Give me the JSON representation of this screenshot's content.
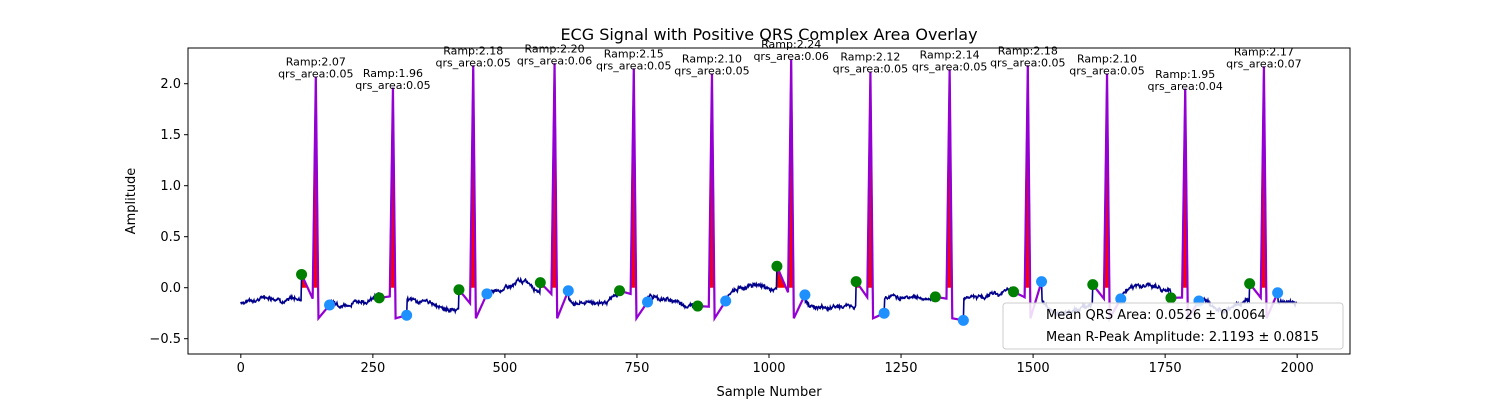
{
  "chart_data": {
    "type": "line",
    "title": "ECG Signal with Positive QRS Complex Area Overlay",
    "xlabel": "Sample Number",
    "ylabel": "Amplitude",
    "xlim": [
      -100,
      2100
    ],
    "ylim": [
      -0.65,
      2.35
    ],
    "xticks": [
      0,
      250,
      500,
      750,
      1000,
      1250,
      1500,
      1750,
      2000
    ],
    "yticks": [
      -0.5,
      0.0,
      0.5,
      1.0,
      1.5,
      2.0
    ],
    "ytick_labels": [
      "−0.5",
      "0.0",
      "0.5",
      "1.0",
      "1.5",
      "2.0"
    ],
    "grid": false,
    "colors": {
      "signal": "#00008b",
      "qrs": "#9400d3",
      "area": "#ff0000",
      "q_point": "#008000",
      "s_point": "#1e90ff"
    },
    "beats": [
      {
        "r": 142,
        "amp": 2.07,
        "area": "0.05",
        "q": [
          115,
          0.13
        ],
        "s": [
          168,
          -0.17
        ],
        "ramp_label": "Ramp:2.07",
        "area_label": "qrs_area:0.05"
      },
      {
        "r": 288,
        "amp": 1.96,
        "area": "0.05",
        "q": [
          262,
          -0.1
        ],
        "s": [
          314,
          -0.27
        ],
        "ramp_label": "Ramp:1.96",
        "area_label": "qrs_area:0.05"
      },
      {
        "r": 440,
        "amp": 2.18,
        "area": "0.05",
        "q": [
          413,
          -0.02
        ],
        "s": [
          466,
          -0.06
        ],
        "ramp_label": "Ramp:2.18",
        "area_label": "qrs_area:0.05"
      },
      {
        "r": 594,
        "amp": 2.2,
        "area": "0.06",
        "q": [
          567,
          0.05
        ],
        "s": [
          620,
          -0.03
        ],
        "ramp_label": "Ramp:2.20",
        "area_label": "qrs_area:0.06"
      },
      {
        "r": 744,
        "amp": 2.15,
        "area": "0.05",
        "q": [
          717,
          -0.03
        ],
        "s": [
          770,
          -0.14
        ],
        "ramp_label": "Ramp:2.15",
        "area_label": "qrs_area:0.05"
      },
      {
        "r": 892,
        "amp": 2.1,
        "area": "0.05",
        "q": [
          865,
          -0.18
        ],
        "s": [
          918,
          -0.13
        ],
        "ramp_label": "Ramp:2.10",
        "area_label": "qrs_area:0.05"
      },
      {
        "r": 1042,
        "amp": 2.24,
        "area": "0.06",
        "q": [
          1015,
          0.21
        ],
        "s": [
          1068,
          -0.07
        ],
        "ramp_label": "Ramp:2.24",
        "area_label": "qrs_area:0.06"
      },
      {
        "r": 1192,
        "amp": 2.12,
        "area": "0.05",
        "q": [
          1165,
          0.06
        ],
        "s": [
          1218,
          -0.25
        ],
        "ramp_label": "Ramp:2.12",
        "area_label": "qrs_area:0.05"
      },
      {
        "r": 1342,
        "amp": 2.14,
        "area": "0.05",
        "q": [
          1315,
          -0.09
        ],
        "s": [
          1368,
          -0.32
        ],
        "ramp_label": "Ramp:2.14",
        "area_label": "qrs_area:0.05"
      },
      {
        "r": 1490,
        "amp": 2.18,
        "area": "0.05",
        "q": [
          1463,
          -0.04
        ],
        "s": [
          1516,
          0.06
        ],
        "ramp_label": "Ramp:2.18",
        "area_label": "qrs_area:0.05"
      },
      {
        "r": 1640,
        "amp": 2.1,
        "area": "0.05",
        "q": [
          1613,
          0.03
        ],
        "s": [
          1666,
          -0.11
        ],
        "ramp_label": "Ramp:2.10",
        "area_label": "qrs_area:0.05"
      },
      {
        "r": 1788,
        "amp": 1.95,
        "area": "0.04",
        "q": [
          1761,
          -0.1
        ],
        "s": [
          1814,
          -0.13
        ],
        "ramp_label": "Ramp:1.95",
        "area_label": "qrs_area:0.04"
      },
      {
        "r": 1937,
        "amp": 2.17,
        "area": "0.07",
        "q": [
          1910,
          0.04
        ],
        "s": [
          1963,
          -0.05
        ],
        "ramp_label": "Ramp:2.17",
        "area_label": "qrs_area:0.07"
      }
    ],
    "legend": {
      "placement": "lower-right",
      "entries": [
        "Mean QRS Area: 0.0526 ± 0.0064",
        "Mean R-Peak Amplitude: 2.1193 ± 0.0815"
      ]
    }
  }
}
